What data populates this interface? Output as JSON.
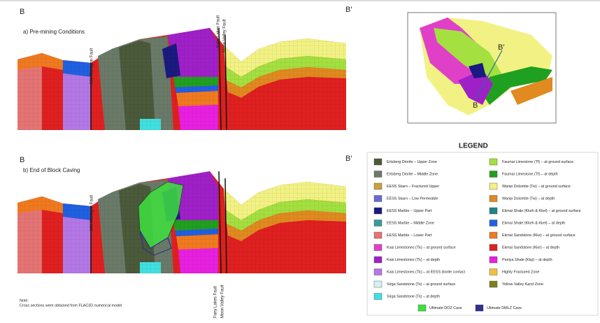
{
  "sections": [
    {
      "label_left": "B",
      "label_right": "B′",
      "title": "a) Pre-mining Conditions",
      "faults": [
        "Mill Wanagon Fault",
        "Fairy Lakes Fault",
        "Moon Valley Fault"
      ]
    },
    {
      "label_left": "B",
      "label_right": "B′",
      "title": "b) End of Block Caving",
      "faults": [
        "Mill Wanagon Fault",
        "Fairy Lakes Fault",
        "Moon Valley Fault"
      ]
    }
  ],
  "location_map": {
    "labels": [
      "B′",
      "B"
    ]
  },
  "legend": {
    "title": "LEGEND",
    "items": [
      {
        "label": "Ertsberg Diorite – Upper Zone",
        "color": "#4b5a3a"
      },
      {
        "label": "Ertsberg Diorite – Middle Zone",
        "color": "#6b7a68"
      },
      {
        "label": "EESS Skarn – Fractured Upper",
        "color": "#c9a040"
      },
      {
        "label": "EESS Skarn – Low Permeable",
        "color": "#6a6ad2"
      },
      {
        "label": "EESS Marble – Upper Part",
        "color": "#1a1a80"
      },
      {
        "label": "EESS Marble – Middle Zone",
        "color": "#3a9a9a"
      },
      {
        "label": "EESS Marble – Lower Part",
        "color": "#e57474"
      },
      {
        "label": "Kais Limestones (Tk) – at ground surface",
        "color": "#e040c8"
      },
      {
        "label": "Kais Limestones (Tk) – at depth",
        "color": "#a020c8"
      },
      {
        "label": "Kais Limestones (Tk) – at EESS diorite contact",
        "color": "#b478e6"
      },
      {
        "label": "Sirga Sandstone (Ts) – at ground surface",
        "color": "#d4f2f2"
      },
      {
        "label": "Sirga Sandstone (Ts) – at depth",
        "color": "#40e0e0"
      },
      {
        "label": "Faumai Limestone (Tf) – at ground surface",
        "color": "#a4e040"
      },
      {
        "label": "Faumai Limestone (Tf) – at depth",
        "color": "#20a020"
      },
      {
        "label": "Waripi Dolomite (Tw) – at ground surface",
        "color": "#f2f284"
      },
      {
        "label": "Waripi Dolomite (Tw) – at depth",
        "color": "#e08a20"
      },
      {
        "label": "Ekmai Shale (Kkeh & Kkel) – at ground surface",
        "color": "#208484"
      },
      {
        "label": "Ekmai Shale (Kkeh & Kkel) – at depth",
        "color": "#2060e0"
      },
      {
        "label": "Ekmai Sandstone (Kke) – at ground surface",
        "color": "#f07a20"
      },
      {
        "label": "Ekmai Sandstone (Kke) – at depth",
        "color": "#e02020"
      },
      {
        "label": "Paniya Shale (Kkp) – at depth",
        "color": "#e820e0"
      },
      {
        "label": "Highly Fractured Zone",
        "color": "#f2c040"
      },
      {
        "label": "Yellow Valley Karst Zone",
        "color": "#80801c"
      }
    ],
    "cave_items": [
      {
        "label": "Ultimate DOZ Cave",
        "color": "#40e040"
      },
      {
        "label": "Ultimate DMLZ Cave",
        "color": "#303090"
      }
    ]
  },
  "note": {
    "heading": "Note:",
    "text": "Cross sections were obtained from FLAC3D numerical model"
  }
}
